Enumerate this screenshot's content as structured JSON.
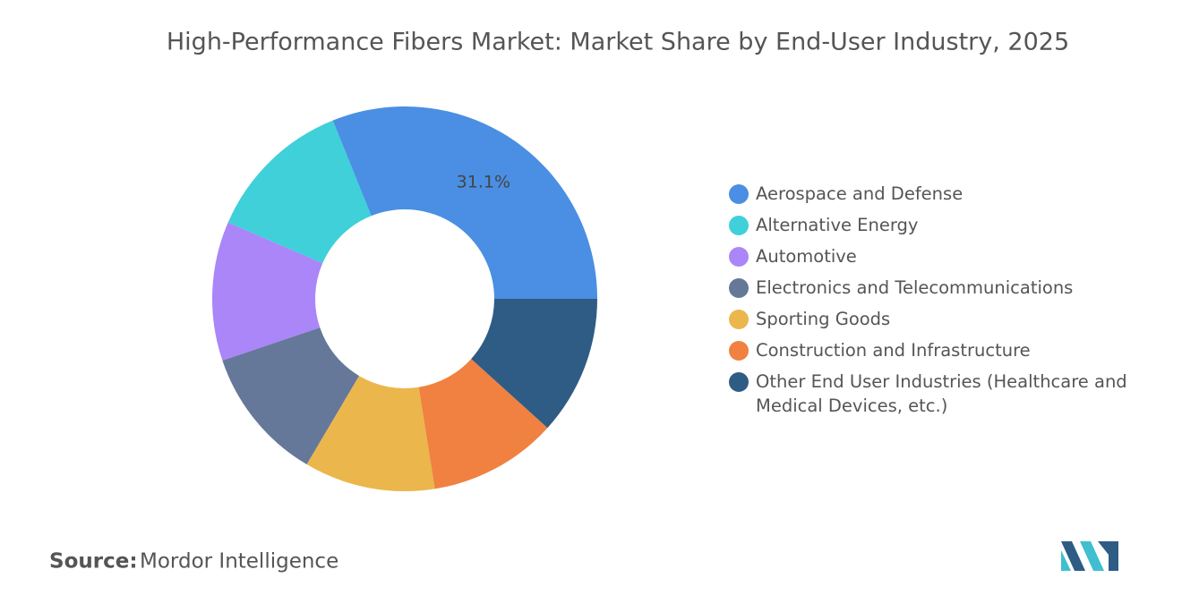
{
  "chart_data": {
    "type": "donut",
    "title": "High-Performance Fibers Market: Market Share by End-User Industry, 2025",
    "categories": [
      "Aerospace and Defense",
      "Alternative Energy",
      "Automotive",
      "Electronics and Telecommunications",
      "Sporting Goods",
      "Construction and Infrastructure",
      "Other End User Industries (Healthcare and Medical Devices, etc.)"
    ],
    "values": [
      31.1,
      12.4,
      11.7,
      11.3,
      11,
      10.8,
      11.7
    ],
    "value_labels": [
      "31.1%",
      null,
      null,
      null,
      null,
      null,
      null
    ],
    "colors": [
      "#4a8fe3",
      "#3fd0d9",
      "#aa86f8",
      "#65789a",
      "#ebb64c",
      "#f08141",
      "#2e5c85"
    ],
    "legend": "right"
  },
  "source_label": "Source:",
  "source": "Mordor Intelligence"
}
